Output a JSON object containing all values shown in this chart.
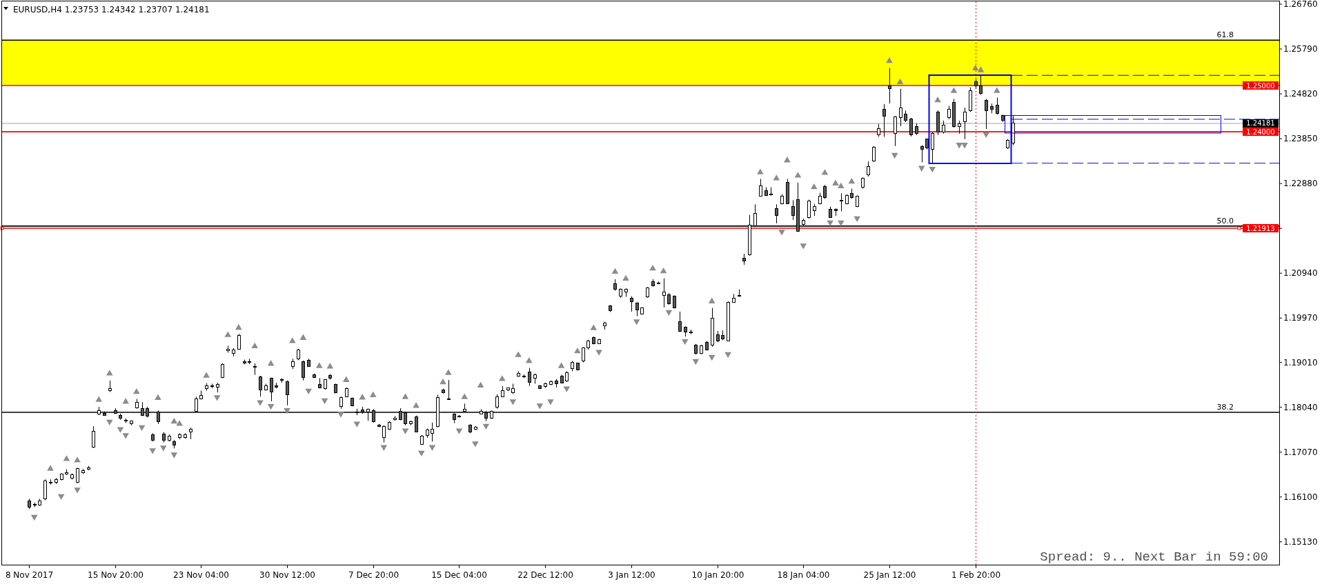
{
  "chart_data": {
    "type": "candlestick",
    "title": "EURUSD,H4 1.23753 1.24342 1.23707 1.24181",
    "color": "#000000",
    "categories": [
      "8 Nov 2017",
      null,
      null,
      null,
      null,
      null,
      null,
      null,
      null,
      null,
      null,
      null,
      null,
      null,
      null,
      null,
      "15 Nov 20:00",
      null,
      null,
      null,
      null,
      null,
      null,
      null,
      null,
      null,
      null,
      null,
      null,
      null,
      null,
      null,
      "23 Nov 04:00",
      null,
      null,
      null,
      null,
      null,
      null,
      null,
      null,
      null,
      null,
      null,
      null,
      null,
      null,
      null,
      "30 Nov 12:00",
      null,
      null,
      null,
      null,
      null,
      null,
      null,
      null,
      null,
      null,
      null,
      null,
      null,
      null,
      null,
      "7 Dec 20:00",
      null,
      null,
      null,
      null,
      null,
      null,
      null,
      null,
      null,
      null,
      null,
      null,
      null,
      null,
      null,
      "15 Dec 04:00",
      null,
      null,
      null,
      null,
      null,
      null,
      null,
      null,
      null,
      null,
      null,
      null,
      null,
      null,
      null,
      "22 Dec 12:00",
      null,
      null,
      null,
      null,
      null,
      null,
      null,
      null,
      null,
      null,
      null,
      null,
      null,
      null,
      null,
      "3 Jan 12:00",
      null,
      null,
      null,
      null,
      null,
      null,
      null,
      null,
      null,
      null,
      null,
      null,
      null,
      null,
      null,
      "10 Jan 20:00",
      null,
      null,
      null,
      null,
      null,
      null,
      null,
      null,
      null,
      null,
      null,
      null,
      null,
      null,
      null,
      "18 Jan 04:00",
      null,
      null,
      null,
      null,
      null,
      null,
      null,
      null,
      null,
      null,
      null,
      null,
      null,
      null,
      null,
      "25 Jan 12:00",
      null,
      null,
      null,
      null,
      null,
      null,
      null,
      null,
      null,
      null,
      null,
      null,
      null,
      null,
      null,
      "1 Feb 20:00",
      null,
      null,
      null,
      null,
      null,
      null,
      null,
      null,
      null,
      null,
      null,
      null,
      null,
      null,
      null,
      null,
      null,
      null,
      null,
      null,
      null,
      null,
      null,
      null,
      null,
      null,
      null,
      null,
      null,
      null,
      null,
      null,
      null,
      null,
      null,
      null,
      null,
      null,
      null,
      null,
      null,
      null,
      null,
      null,
      null,
      null,
      null,
      null,
      null,
      null,
      null,
      null,
      null,
      null,
      null,
      null
    ],
    "ylim": [
      1.1462,
      1.2682
    ],
    "yticks": [
      {
        "value": 1.2676,
        "label": "1.26760"
      },
      {
        "value": 1.2579,
        "label": "1.25790"
      },
      {
        "value": 1.2482,
        "label": "1.24820"
      },
      {
        "value": 1.2385,
        "label": "1.23850"
      },
      {
        "value": 1.2288,
        "label": "1.22880"
      },
      {
        "value": 1.2191,
        "label": null
      },
      {
        "value": 1.2094,
        "label": "1.20940"
      },
      {
        "value": 1.1997,
        "label": "1.19970"
      },
      {
        "value": 1.1901,
        "label": "1.19010"
      },
      {
        "value": 1.1804,
        "label": "1.18040"
      },
      {
        "value": 1.1707,
        "label": "1.17070"
      },
      {
        "value": 1.161,
        "label": "1.16100"
      },
      {
        "value": 1.1513,
        "label": "1.15130"
      }
    ],
    "ohlc": [
      [
        1.1601,
        1.1606,
        1.1584,
        1.1588
      ],
      [
        1.1593,
        1.1598,
        1.1588,
        1.1594
      ],
      [
        1.1593,
        1.1606,
        1.1591,
        1.1602
      ],
      [
        1.1606,
        1.1648,
        1.1603,
        1.1645
      ],
      [
        1.1641,
        1.1648,
        1.1637,
        1.1642
      ],
      [
        1.1641,
        1.1651,
        1.1638,
        1.1648
      ],
      [
        1.1648,
        1.1661,
        1.1646,
        1.1659
      ],
      [
        1.1659,
        1.167,
        1.1658,
        1.1662
      ],
      [
        1.1651,
        1.1661,
        1.1648,
        1.1658
      ],
      [
        1.1641,
        1.1673,
        1.164,
        1.1671
      ],
      [
        1.1662,
        1.1671,
        1.166,
        1.1667
      ],
      [
        1.167,
        1.1677,
        1.1668,
        1.1673
      ],
      [
        1.1718,
        1.1763,
        1.1716,
        1.1752
      ],
      [
        1.1789,
        1.1805,
        1.1787,
        1.1797
      ],
      [
        1.1791,
        1.1795,
        1.1786,
        1.1787
      ],
      [
        1.184,
        1.1862,
        1.1837,
        1.1845
      ],
      [
        1.1797,
        1.1802,
        1.179,
        1.1791
      ],
      [
        1.1787,
        1.179,
        1.1777,
        1.178
      ],
      [
        1.1776,
        1.178,
        1.177,
        1.1774
      ],
      [
        1.1768,
        1.1775,
        1.1765,
        1.1774
      ],
      [
        1.1803,
        1.1822,
        1.1801,
        1.1814
      ],
      [
        1.1801,
        1.1815,
        1.1785,
        1.1787
      ],
      [
        1.1801,
        1.1805,
        1.1782,
        1.1785
      ],
      [
        1.1745,
        1.1748,
        1.173,
        1.1733
      ],
      [
        1.1794,
        1.1797,
        1.1768,
        1.1773
      ],
      [
        1.1746,
        1.175,
        1.1728,
        1.1732
      ],
      [
        1.1733,
        1.1745,
        1.173,
        1.1742
      ],
      [
        1.1729,
        1.1733,
        1.1715,
        1.1723
      ],
      [
        1.1738,
        1.1748,
        1.1735,
        1.1744
      ],
      [
        1.1739,
        1.1748,
        1.1736,
        1.1745
      ],
      [
        1.175,
        1.176,
        1.1735,
        1.1757
      ],
      [
        1.1795,
        1.1827,
        1.1794,
        1.1822
      ],
      [
        1.1822,
        1.184,
        1.1821,
        1.183
      ],
      [
        1.1844,
        1.1856,
        1.184,
        1.185
      ],
      [
        1.185,
        1.1855,
        1.1845,
        1.1849
      ],
      [
        1.1848,
        1.1857,
        1.1836,
        1.1853
      ],
      [
        1.1868,
        1.1899,
        1.1867,
        1.1897
      ],
      [
        1.1927,
        1.1937,
        1.1922,
        1.1929
      ],
      [
        1.1921,
        1.1932,
        1.1914,
        1.1928
      ],
      [
        1.193,
        1.1963,
        1.1929,
        1.196
      ],
      [
        1.1903,
        1.1907,
        1.1897,
        1.1899
      ],
      [
        1.1901,
        1.1909,
        1.1897,
        1.1902
      ],
      [
        1.1893,
        1.1899,
        1.1874,
        1.1892
      ],
      [
        1.187,
        1.1872,
        1.1827,
        1.1842
      ],
      [
        1.1842,
        1.1855,
        1.184,
        1.1851
      ],
      [
        1.1867,
        1.1868,
        1.1817,
        1.1837
      ],
      [
        1.1851,
        1.1857,
        1.1845,
        1.1847
      ],
      [
        1.1862,
        1.1867,
        1.1857,
        1.1864
      ],
      [
        1.186,
        1.1862,
        1.1808,
        1.1831
      ],
      [
        1.1893,
        1.1909,
        1.1887,
        1.1903
      ],
      [
        1.1909,
        1.193,
        1.1906,
        1.1928
      ],
      [
        1.1903,
        1.1905,
        1.1862,
        1.1868
      ],
      [
        1.1906,
        1.1909,
        1.1892,
        1.1893
      ],
      [
        1.1874,
        1.1877,
        1.1867,
        1.1868
      ],
      [
        1.1854,
        1.1867,
        1.1845,
        1.1846
      ],
      [
        1.1844,
        1.1865,
        1.1842,
        1.1864
      ],
      [
        1.1873,
        1.1876,
        1.1864,
        1.1867
      ],
      [
        1.1854,
        1.1855,
        1.1834,
        1.1835
      ],
      [
        1.1806,
        1.1827,
        1.1801,
        1.1825
      ],
      [
        1.1827,
        1.1847,
        1.1826,
        1.1845
      ],
      [
        1.1824,
        1.1825,
        1.1806,
        1.1807
      ],
      [
        1.1794,
        1.1801,
        1.1787,
        1.1793
      ],
      [
        1.1798,
        1.1805,
        1.179,
        1.1794
      ],
      [
        1.1794,
        1.1801,
        1.1775,
        1.18
      ],
      [
        1.1797,
        1.18,
        1.1771,
        1.1773
      ],
      [
        1.1766,
        1.1768,
        1.1761,
        1.1763
      ],
      [
        1.1738,
        1.1765,
        1.1728,
        1.1763
      ],
      [
        1.1757,
        1.1774,
        1.1755,
        1.1771
      ],
      [
        1.1777,
        1.1785,
        1.1775,
        1.1781
      ],
      [
        1.1796,
        1.1802,
        1.1776,
        1.1777
      ],
      [
        1.1792,
        1.1794,
        1.1765,
        1.1768
      ],
      [
        1.1769,
        1.1775,
        1.1765,
        1.1773
      ],
      [
        1.1784,
        1.1786,
        1.175,
        1.1751
      ],
      [
        1.1724,
        1.1744,
        1.1723,
        1.1742
      ],
      [
        1.1743,
        1.1758,
        1.1738,
        1.1755
      ],
      [
        1.1748,
        1.1771,
        1.173,
        1.1757
      ],
      [
        1.1763,
        1.1831,
        1.1761,
        1.1825
      ],
      [
        1.1842,
        1.1844,
        1.1834,
        1.1835
      ],
      [
        1.1821,
        1.1863,
        1.182,
        1.1822
      ],
      [
        1.1789,
        1.1791,
        1.177,
        1.1777
      ],
      [
        1.1785,
        1.1787,
        1.1782,
        1.1784
      ],
      [
        1.1796,
        1.1812,
        1.1795,
        1.18
      ],
      [
        1.1766,
        1.1767,
        1.1748,
        1.175
      ],
      [
        1.1757,
        1.1763,
        1.1755,
        1.1761
      ],
      [
        1.179,
        1.18,
        1.1789,
        1.1795
      ],
      [
        1.1792,
        1.1796,
        1.1774,
        1.1781
      ],
      [
        1.1781,
        1.1797,
        1.1779,
        1.1795
      ],
      [
        1.1805,
        1.1832,
        1.1801,
        1.1827
      ],
      [
        1.1827,
        1.185,
        1.1826,
        1.184
      ],
      [
        1.1841,
        1.1847,
        1.1839,
        1.1846
      ],
      [
        1.1836,
        1.1855,
        1.1833,
        1.1845
      ],
      [
        1.1872,
        1.1882,
        1.187,
        1.1877
      ],
      [
        1.1871,
        1.1875,
        1.1867,
        1.1872
      ],
      [
        1.188,
        1.1889,
        1.185,
        1.1858
      ],
      [
        1.1867,
        1.1877,
        1.1855,
        1.1874
      ],
      [
        1.185,
        1.1852,
        1.1844,
        1.1845
      ],
      [
        1.1849,
        1.1857,
        1.1846,
        1.1855
      ],
      [
        1.1854,
        1.1862,
        1.1852,
        1.186
      ],
      [
        1.1861,
        1.1865,
        1.1847,
        1.1855
      ],
      [
        1.1871,
        1.1874,
        1.1856,
        1.1857
      ],
      [
        1.1861,
        1.1882,
        1.1859,
        1.1879
      ],
      [
        1.1888,
        1.1904,
        1.1882,
        1.1901
      ],
      [
        1.1899,
        1.19,
        1.1884,
        1.1885
      ],
      [
        1.1904,
        1.1934,
        1.1901,
        1.1932
      ],
      [
        1.1932,
        1.195,
        1.1929,
        1.1948
      ],
      [
        1.1955,
        1.1957,
        1.194,
        1.1942
      ],
      [
        1.1942,
        1.1952,
        1.1941,
        1.195
      ],
      [
        1.1981,
        1.1989,
        1.1972,
        1.1986
      ],
      [
        1.2023,
        1.2025,
        1.201,
        1.2013
      ],
      [
        1.2072,
        1.2081,
        1.2056,
        1.2059
      ],
      [
        1.2044,
        1.2061,
        1.2041,
        1.2059
      ],
      [
        1.2053,
        1.2061,
        1.2043,
        1.206
      ],
      [
        1.204,
        1.2044,
        1.2011,
        1.2032
      ],
      [
        1.2029,
        1.2031,
        1.2001,
        1.2015
      ],
      [
        1.2006,
        1.202,
        1.2005,
        1.2019
      ],
      [
        1.2043,
        1.2064,
        1.2041,
        1.2063
      ],
      [
        1.2075,
        1.2081,
        1.2065,
        1.2067
      ],
      [
        1.2073,
        1.2076,
        1.2071,
        1.2072
      ],
      [
        1.2046,
        1.2083,
        1.202,
        1.2053
      ],
      [
        1.2048,
        1.2051,
        1.2026,
        1.2028
      ],
      [
        1.2045,
        1.2046,
        1.2018,
        1.2019
      ],
      [
        1.1989,
        1.2011,
        1.1967,
        1.1969
      ],
      [
        1.1977,
        1.1979,
        1.1957,
        1.1967
      ],
      [
        1.1967,
        1.1972,
        1.1962,
        1.1966
      ],
      [
        1.1939,
        1.1941,
        1.1918,
        1.192
      ],
      [
        1.192,
        1.1939,
        1.1919,
        1.1937
      ],
      [
        1.1945,
        1.1947,
        1.1927,
        1.1928
      ],
      [
        1.1939,
        1.2019,
        1.1935,
        1.1996
      ],
      [
        1.1961,
        1.1969,
        1.1945,
        1.1947
      ],
      [
        1.196,
        1.197,
        1.1949,
        1.1952
      ],
      [
        1.1948,
        1.2033,
        1.1947,
        1.2031
      ],
      [
        1.2031,
        1.2049,
        1.203,
        1.204
      ],
      [
        1.2044,
        1.2059,
        1.2043,
        1.2046
      ],
      [
        1.2126,
        1.2136,
        1.2112,
        1.2121
      ],
      [
        1.2134,
        1.222,
        1.2132,
        1.2198
      ],
      [
        1.2196,
        1.2243,
        1.2194,
        1.2224
      ],
      [
        1.2261,
        1.2298,
        1.226,
        1.2283
      ],
      [
        1.2272,
        1.228,
        1.2261,
        1.2262
      ],
      [
        1.2265,
        1.228,
        1.2262,
        1.2264
      ],
      [
        1.2234,
        1.2243,
        1.2202,
        1.2219
      ],
      [
        1.2245,
        1.2265,
        1.2243,
        1.226
      ],
      [
        1.2291,
        1.2298,
        1.2244,
        1.2245
      ],
      [
        1.2238,
        1.2252,
        1.2209,
        1.2219
      ],
      [
        1.2253,
        1.229,
        1.2184,
        1.2185
      ],
      [
        1.2199,
        1.2212,
        1.2196,
        1.2209
      ],
      [
        1.2214,
        1.2253,
        1.2212,
        1.225
      ],
      [
        1.2229,
        1.2244,
        1.2218,
        1.2238
      ],
      [
        1.2245,
        1.2268,
        1.2243,
        1.2261
      ],
      [
        1.2282,
        1.2285,
        1.2255,
        1.2257
      ],
      [
        1.2233,
        1.2238,
        1.2214,
        1.2215
      ],
      [
        1.2232,
        1.2234,
        1.2218,
        1.2229
      ],
      [
        1.225,
        1.2267,
        1.2228,
        1.2252
      ],
      [
        1.2245,
        1.2265,
        1.2243,
        1.2262
      ],
      [
        1.2267,
        1.2277,
        1.2255,
        1.2257
      ],
      [
        1.2239,
        1.2262,
        1.2237,
        1.226
      ],
      [
        1.228,
        1.2301,
        1.2277,
        1.2299
      ],
      [
        1.2307,
        1.2336,
        1.2303,
        1.2325
      ],
      [
        1.2337,
        1.2369,
        1.2335,
        1.2367
      ],
      [
        1.2393,
        1.2417,
        1.2389,
        1.2407
      ],
      [
        1.2449,
        1.246,
        1.2389,
        1.2433
      ],
      [
        1.2499,
        1.2538,
        1.2461,
        1.2494
      ],
      [
        1.2396,
        1.2434,
        1.2369,
        1.2432
      ],
      [
        1.243,
        1.2493,
        1.2412,
        1.2452
      ],
      [
        1.2438,
        1.2446,
        1.2421,
        1.2424
      ],
      [
        1.2427,
        1.243,
        1.239,
        1.2393
      ],
      [
        1.2412,
        1.2418,
        1.2393,
        1.2396
      ],
      [
        1.2368,
        1.2371,
        1.2334,
        1.2362
      ],
      [
        1.2384,
        1.2385,
        1.2362,
        1.2365
      ],
      [
        1.2362,
        1.2399,
        1.2332,
        1.2396
      ],
      [
        1.2443,
        1.2446,
        1.2393,
        1.2399
      ],
      [
        1.2399,
        1.2424,
        1.2396,
        1.2415
      ],
      [
        1.243,
        1.2456,
        1.2427,
        1.2449
      ],
      [
        1.2464,
        1.2471,
        1.2409,
        1.2412
      ],
      [
        1.2412,
        1.2424,
        1.2396,
        1.2417
      ],
      [
        1.2421,
        1.2452,
        1.2384,
        1.2443
      ],
      [
        1.2446,
        1.2496,
        1.2443,
        1.2489
      ],
      [
        1.2508,
        1.2514,
        1.2493,
        1.2499
      ],
      [
        1.2499,
        1.2522,
        1.248,
        1.2483
      ],
      [
        1.2468,
        1.2471,
        1.2406,
        1.2446
      ],
      [
        1.2455,
        1.2461,
        1.244,
        1.2449
      ],
      [
        1.2458,
        1.2474,
        1.2437,
        1.244
      ],
      [
        1.2435,
        1.2437,
        1.2421,
        1.2424
      ],
      [
        1.2365,
        1.2384,
        1.2363,
        1.2381
      ],
      [
        1.23753,
        1.24342,
        1.23707,
        1.24181
      ],
      null,
      null,
      null,
      null,
      null,
      null,
      null,
      null,
      null,
      null,
      null,
      null,
      null,
      null,
      null,
      null,
      null,
      null,
      null,
      null,
      null,
      null,
      null,
      null,
      null,
      null,
      null,
      null,
      null,
      null,
      null,
      null,
      null,
      null,
      null,
      null,
      null,
      null,
      null,
      null,
      null,
      null,
      null,
      null,
      null,
      null,
      null,
      null,
      null
    ],
    "series": [
      {
        "type": "scatter",
        "color": "#8c8c8c",
        "marker": "triangle",
        "values": [
          null,
          null,
          null,
          null,
          1.1671,
          null,
          null,
          1.1692,
          null,
          1.1689,
          null,
          null,
          null,
          1.182,
          null,
          1.1877,
          null,
          null,
          1.1816,
          null,
          1.1837,
          null,
          null,
          null,
          1.1824,
          null,
          null,
          1.1773,
          1.1768,
          null,
          null,
          null,
          null,
          1.1872,
          null,
          null,
          null,
          1.196,
          null,
          1.1976,
          null,
          null,
          1.1936,
          null,
          null,
          1.1898,
          null,
          null,
          null,
          1.1947,
          null,
          1.1954,
          null,
          null,
          1.1893,
          null,
          1.1892,
          null,
          null,
          1.1863,
          null,
          null,
          1.1825,
          null,
          1.183,
          null,
          null,
          null,
          null,
          null,
          1.1826,
          null,
          1.1807,
          null,
          null,
          null,
          null,
          1.1858,
          1.1878,
          null,
          null,
          1.1826,
          null,
          null,
          1.1851,
          null,
          null,
          null,
          1.1865,
          null,
          null,
          1.1917,
          null,
          1.1904,
          null,
          null,
          null,
          null,
          null,
          1.1893,
          null,
          null,
          1.1925,
          null,
          null,
          1.1975,
          null,
          null,
          null,
          1.2097,
          null,
          1.2082,
          null,
          null,
          null,
          null,
          1.2104,
          null,
          1.2098,
          null,
          null,
          null,
          null,
          null,
          null,
          null,
          null,
          1.2033,
          null,
          null,
          null,
          null,
          null,
          null,
          null,
          null,
          1.2312,
          null,
          null,
          1.2299,
          null,
          1.2338,
          null,
          1.2305,
          null,
          null,
          1.228,
          null,
          1.2311,
          null,
          1.2288,
          1.2282,
          null,
          1.2292,
          null,
          null,
          null,
          null,
          null,
          null,
          1.2553,
          null,
          1.2507,
          null,
          null,
          null,
          null,
          null,
          null,
          1.2468,
          null,
          null,
          1.2488,
          null,
          null,
          null,
          1.2537,
          1.2533,
          null,
          null,
          1.2488,
          null,
          null,
          null,
          null,
          null,
          null,
          null,
          null,
          null,
          null,
          null,
          null,
          null,
          null,
          null,
          null,
          null,
          null,
          null,
          null,
          null,
          null,
          null,
          null,
          null,
          null,
          null,
          null,
          null,
          null,
          null,
          null,
          null,
          null,
          null,
          null,
          null,
          null,
          null,
          null,
          null,
          null,
          null,
          null,
          null,
          null,
          null,
          null,
          null,
          null,
          null,
          null
        ]
      },
      {
        "type": "scatter",
        "color": "#8c8c8c",
        "marker": "triangle",
        "values": [
          null,
          1.1567,
          null,
          null,
          null,
          null,
          1.1612,
          null,
          null,
          1.1626,
          null,
          null,
          null,
          null,
          null,
          1.1773,
          null,
          1.1757,
          1.1744,
          null,
          null,
          1.1761,
          null,
          1.1711,
          null,
          1.1717,
          null,
          1.1702,
          null,
          null,
          null,
          null,
          null,
          null,
          null,
          1.1826,
          null,
          null,
          null,
          null,
          null,
          null,
          null,
          1.1815,
          null,
          1.1807,
          null,
          null,
          1.1798,
          null,
          null,
          null,
          1.184,
          null,
          null,
          1.1819,
          null,
          null,
          1.179,
          null,
          null,
          1.1769,
          null,
          null,
          null,
          null,
          1.1718,
          null,
          null,
          null,
          1.1754,
          null,
          null,
          1.1706,
          null,
          1.1718,
          null,
          null,
          null,
          null,
          1.1754,
          null,
          null,
          1.1726,
          null,
          1.1764,
          null,
          null,
          null,
          null,
          1.1817,
          null,
          null,
          null,
          null,
          1.1808,
          null,
          1.1817,
          null,
          null,
          1.1845,
          null,
          null,
          null,
          null,
          null,
          1.1924,
          null,
          null,
          null,
          null,
          null,
          null,
          1.199,
          null,
          null,
          null,
          null,
          null,
          1.201,
          null,
          null,
          1.1947,
          null,
          1.1904,
          null,
          null,
          1.1913,
          null,
          null,
          1.1919,
          null,
          null,
          null,
          null,
          null,
          null,
          null,
          null,
          null,
          1.2184,
          null,
          null,
          null,
          1.2154,
          null,
          null,
          null,
          null,
          1.2204,
          null,
          1.2204,
          null,
          null,
          1.2213,
          null,
          null,
          null,
          null,
          null,
          null,
          1.235,
          null,
          null,
          null,
          null,
          1.2322,
          null,
          1.232,
          null,
          null,
          null,
          null,
          1.2372,
          1.2372,
          null,
          null,
          null,
          1.2395,
          null,
          null,
          null,
          null,
          null,
          null,
          null,
          null,
          null,
          null,
          null,
          null,
          null,
          null,
          null,
          null,
          null,
          null,
          null,
          null,
          null,
          null,
          null,
          null,
          null,
          null,
          null,
          null,
          null,
          null,
          null,
          null,
          null,
          null,
          null,
          null,
          null,
          null,
          null,
          null,
          null,
          null,
          null,
          null,
          null,
          null,
          null,
          null,
          null,
          null,
          null,
          null,
          null,
          null
        ]
      }
    ],
    "bands": [
      {
        "axis": "y",
        "from": 1.25,
        "to": 1.2598,
        "color": "#ffff00"
      }
    ],
    "ref_lines": [
      {
        "axis": "y",
        "value": 1.2598,
        "color": "#000000"
      },
      {
        "axis": "y",
        "value": 1.25,
        "label": "1.25000",
        "color": "#ff0000"
      },
      {
        "axis": "y",
        "value": 1.24181,
        "label": "1.24181",
        "color": "#c0c0c0"
      },
      {
        "axis": "y",
        "value": 1.24,
        "label": "1.24000",
        "color": "#ff0000"
      },
      {
        "axis": "y",
        "value": 1.2196,
        "color": "#000000"
      },
      {
        "axis": "y",
        "value": 1.21913,
        "label": "1.21913",
        "color": "#ff0000"
      },
      {
        "axis": "y",
        "value": 1.1793,
        "color": "#000000"
      },
      {
        "axis": "y",
        "value": 1.2522,
        "color": "#0000ff",
        "line_style": "dashed"
      },
      {
        "axis": "y",
        "value": 1.2427,
        "color": "#0000ff",
        "line_style": "dashed"
      },
      {
        "axis": "y",
        "value": 1.2332,
        "color": "#0000ff",
        "line_style": "dashed"
      },
      {
        "axis": "x",
        "value": "1 Feb 20:00",
        "color": "#ff0000",
        "line_style": "dotted"
      }
    ],
    "annotations": [
      "Spread: 9.. Next Bar in 59:00",
      {
        "text": "61.8",
        "y": 1.2598
      },
      {
        "text": "50.0",
        "y": 1.2196
      },
      {
        "text": "38.2",
        "y": 1.1793
      }
    ]
  }
}
